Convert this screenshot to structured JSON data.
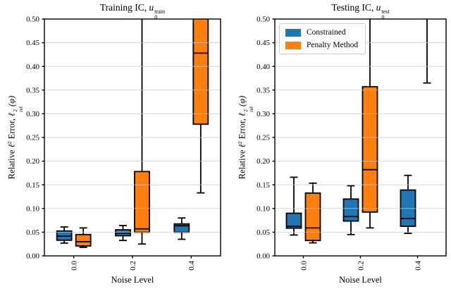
{
  "legend": {
    "items": [
      {
        "label": "Constrained",
        "color": "#1f77b4"
      },
      {
        "label": "Penalty Method",
        "color": "#ff7f0e"
      }
    ]
  },
  "chart_data": [
    {
      "type": "boxplot",
      "panel": "left",
      "title": {
        "prefix": "Training IC, ",
        "var": "u",
        "sub": "0",
        "sup": "train"
      },
      "xlabel": "Noise Level",
      "ylabel": {
        "text_pre": "Relative ",
        "ell": "ℓ",
        "sup": "2",
        "text_mid": " Error, ",
        "sub": "rel",
        "post": "(φ)"
      },
      "categories": [
        "0.0",
        "0.2",
        "0.4"
      ],
      "ylim": [
        0,
        0.5
      ],
      "yticks": [
        0,
        0.05,
        0.1,
        0.15,
        0.2,
        0.25,
        0.3,
        0.35,
        0.4,
        0.45,
        0.5
      ],
      "yticklabels": [
        "0.00",
        "0.05",
        "0.10",
        "0.15",
        "0.20",
        "0.25",
        "0.30",
        "0.35",
        "0.40",
        "0.45",
        "0.50"
      ],
      "grid": true,
      "series": [
        {
          "name": "Constrained",
          "color": "#1f77b4",
          "boxes": [
            {
              "whislo": 0.027,
              "q1": 0.033,
              "med": 0.0415,
              "q3": 0.0525,
              "whishi": 0.061
            },
            {
              "whislo": 0.0325,
              "q1": 0.0425,
              "med": 0.048,
              "q3": 0.055,
              "whishi": 0.064
            },
            {
              "whislo": 0.035,
              "q1": 0.05,
              "med": 0.0635,
              "q3": 0.0675,
              "whishi": 0.08
            }
          ]
        },
        {
          "name": "Penalty Method",
          "color": "#ff7f0e",
          "boxes": [
            {
              "whislo": 0.018,
              "q1": 0.021,
              "med": 0.03,
              "q3": 0.045,
              "whishi": 0.059
            },
            {
              "whislo": 0.025,
              "q1": 0.05,
              "med": 0.057,
              "q3": 0.178,
              "whishi": 0.62
            },
            {
              "whislo": 0.133,
              "q1": 0.278,
              "med": 0.428,
              "q3": 0.62,
              "whishi": 0.62
            }
          ]
        }
      ]
    },
    {
      "type": "boxplot",
      "panel": "right",
      "title": {
        "prefix": "Testing IC, ",
        "var": "u",
        "sub": "0",
        "sup": "test"
      },
      "xlabel": "Noise Level",
      "ylabel": {
        "text_pre": "Relative ",
        "ell": "ℓ",
        "sup": "2",
        "text_mid": " Error, ",
        "sub": "rel",
        "post": "(φ)"
      },
      "categories": [
        "0.0",
        "0.2",
        "0.4"
      ],
      "ylim": [
        0,
        0.5
      ],
      "yticks": [
        0,
        0.05,
        0.1,
        0.15,
        0.2,
        0.25,
        0.3,
        0.35,
        0.4,
        0.45,
        0.5
      ],
      "yticklabels": [
        "0.00",
        "0.05",
        "0.10",
        "0.15",
        "0.20",
        "0.25",
        "0.30",
        "0.35",
        "0.40",
        "0.45",
        "0.50"
      ],
      "grid": true,
      "series": [
        {
          "name": "Constrained",
          "color": "#1f77b4",
          "boxes": [
            {
              "whislo": 0.044,
              "q1": 0.0585,
              "med": 0.0625,
              "q3": 0.09,
              "whishi": 0.166
            },
            {
              "whislo": 0.045,
              "q1": 0.0735,
              "med": 0.083,
              "q3": 0.12,
              "whishi": 0.148
            },
            {
              "whislo": 0.0475,
              "q1": 0.0625,
              "med": 0.079,
              "q3": 0.139,
              "whishi": 0.17
            }
          ]
        },
        {
          "name": "Penalty Method",
          "color": "#ff7f0e",
          "boxes": [
            {
              "whislo": 0.0275,
              "q1": 0.0325,
              "med": 0.059,
              "q3": 0.1325,
              "whishi": 0.1535
            },
            {
              "whislo": 0.059,
              "q1": 0.0925,
              "med": 0.182,
              "q3": 0.357,
              "whishi": 0.62
            },
            {
              "whislo": 0.365,
              "q1": 0.62,
              "med": 0.62,
              "q3": 0.62,
              "whishi": 0.62
            }
          ]
        }
      ]
    }
  ]
}
